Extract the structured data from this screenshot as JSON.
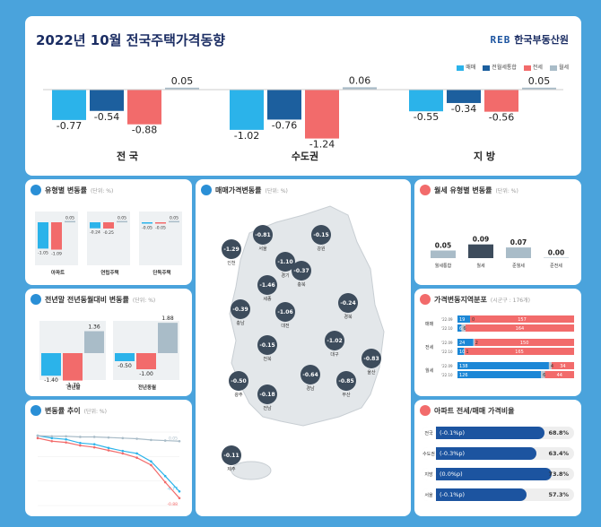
{
  "header": {
    "title": "2022년 10월 전국주택가격동향",
    "brand_logo": "REB",
    "brand_name": "한국부동산원"
  },
  "legend_main": [
    "매매",
    "전월세통합",
    "전세",
    "월세"
  ],
  "colors": {
    "sale": "#2bb3ea",
    "combined": "#1c5f9e",
    "jeonse": "#f26b6b",
    "monthly": "#a9bcc8"
  },
  "chart_data": [
    {
      "type": "bar",
      "categories": [
        "전 국",
        "수도권",
        "지 방"
      ],
      "series": [
        {
          "name": "매매",
          "values": [
            -0.77,
            -1.02,
            -0.55
          ]
        },
        {
          "name": "전월세통합",
          "values": [
            -0.54,
            -0.76,
            -0.34
          ]
        },
        {
          "name": "전세",
          "values": [
            -0.88,
            -1.24,
            -0.56
          ]
        },
        {
          "name": "월세",
          "values": [
            0.05,
            0.06,
            0.05
          ]
        }
      ]
    },
    {
      "type": "bar",
      "title": "유형별 변동률",
      "unit": "단위: %",
      "categories": [
        "아파트",
        "연립주택",
        "단독주택"
      ],
      "series": [
        {
          "name": "매매",
          "values": [
            -1.05,
            -0.24,
            -0.05
          ]
        },
        {
          "name": "전세",
          "values": [
            -1.09,
            -0.25,
            -0.05
          ]
        },
        {
          "name": "월세",
          "values": [
            0.05,
            0.05,
            0.05
          ]
        }
      ]
    },
    {
      "type": "bar",
      "title": "전년말 전년동월대비 변동률",
      "unit": "단위: %",
      "categories": [
        "전년말",
        "전년동월"
      ],
      "series": [
        {
          "name": "매매",
          "values": [
            -1.4,
            -0.5
          ]
        },
        {
          "name": "전세",
          "values": [
            -1.7,
            -1.0
          ]
        },
        {
          "name": "월세",
          "values": [
            1.36,
            1.88
          ]
        }
      ]
    },
    {
      "type": "bar",
      "title": "월세 유형별 변동률",
      "unit": "단위: %",
      "categories": [
        "월세통합",
        "월세",
        "준월세",
        "준전세"
      ],
      "values": [
        0.05,
        0.09,
        0.07,
        0.0
      ],
      "value_labels": [
        "0.05",
        "0.09",
        "0.07",
        "0.00"
      ]
    },
    {
      "type": "table",
      "title": "가격변동지역분포",
      "unit": "시군구 : 176개",
      "groups": [
        {
          "name": "매매",
          "rows": [
            {
              "period": "'22.09",
              "up": 19,
              "flat": 0,
              "down": 157
            },
            {
              "period": "'22.10",
              "up": 6,
              "flat": 6,
              "down": 164
            }
          ]
        },
        {
          "name": "전세",
          "rows": [
            {
              "period": "'22.09",
              "up": 24,
              "flat": 2,
              "down": 150
            },
            {
              "period": "'22.10",
              "up": 10,
              "flat": 1,
              "down": 165
            }
          ]
        },
        {
          "name": "월세",
          "rows": [
            {
              "period": "'22.09",
              "up": 138,
              "flat": 4,
              "down": 34
            },
            {
              "period": "'22.10",
              "up": 126,
              "flat": 6,
              "down": 44
            }
          ]
        }
      ]
    },
    {
      "type": "bar",
      "title": "아파트 전세/매매 가격비율",
      "categories": [
        "전국",
        "수도권",
        "지방",
        "서울"
      ],
      "values": [
        68.8,
        63.4,
        73.8,
        57.3
      ],
      "changes": [
        "(-0.1%p)",
        "(-0.3%p)",
        "(0.0%p)",
        "(-0.1%p)"
      ]
    },
    {
      "type": "line",
      "title": "변동률 추이",
      "unit": "단위: %",
      "series": [
        {
          "name": "매매",
          "values": [
            0.14,
            0.1,
            0.08,
            0.02,
            0.0,
            -0.06,
            -0.11,
            -0.15,
            -0.28,
            -0.52,
            -0.77
          ]
        },
        {
          "name": "전세",
          "values": [
            0.1,
            0.05,
            0.03,
            -0.02,
            -0.05,
            -0.1,
            -0.15,
            -0.22,
            -0.34,
            -0.62,
            -0.88
          ]
        },
        {
          "name": "월세",
          "values": [
            0.14,
            0.13,
            0.13,
            0.12,
            0.12,
            0.11,
            0.1,
            0.09,
            0.07,
            0.06,
            0.05
          ]
        }
      ]
    }
  ],
  "panels": {
    "type_change": {
      "title": "유형별 변동률",
      "unit": "(단위: %)"
    },
    "yoy": {
      "title": "전년말 전년동월대비 변동률",
      "unit": "(단위: %)"
    },
    "trend": {
      "title": "변동률 추이",
      "unit": "(단위: %)"
    },
    "map": {
      "title": "매매가격변동률",
      "unit": "(단위: %)"
    },
    "monthly": {
      "title": "월세 유형별 변동률",
      "unit": "(단위: %)"
    },
    "distribution": {
      "title": "가격변동지역분포",
      "unit": "(시군구 : 176개)"
    },
    "ratio": {
      "title": "아파트 전세/매매 가격비율"
    }
  },
  "map_regions": [
    {
      "name": "인천",
      "value": "-1.29"
    },
    {
      "name": "서울",
      "value": "-0.81"
    },
    {
      "name": "경기",
      "value": "-1.10"
    },
    {
      "name": "강원",
      "value": "-0.15"
    },
    {
      "name": "충북",
      "value": "-0.37"
    },
    {
      "name": "세종",
      "value": "-1.46"
    },
    {
      "name": "충남",
      "value": "-0.39"
    },
    {
      "name": "대전",
      "value": "-1.06"
    },
    {
      "name": "경북",
      "value": "-0.24"
    },
    {
      "name": "전북",
      "value": "-0.15"
    },
    {
      "name": "대구",
      "value": "-1.02"
    },
    {
      "name": "광주",
      "value": "-0.50"
    },
    {
      "name": "전남",
      "value": "-0.18"
    },
    {
      "name": "경남",
      "value": "-0.64"
    },
    {
      "name": "부산",
      "value": "-0.85"
    },
    {
      "name": "울산",
      "value": "-0.83"
    },
    {
      "name": "제주",
      "value": "-0.11"
    }
  ]
}
